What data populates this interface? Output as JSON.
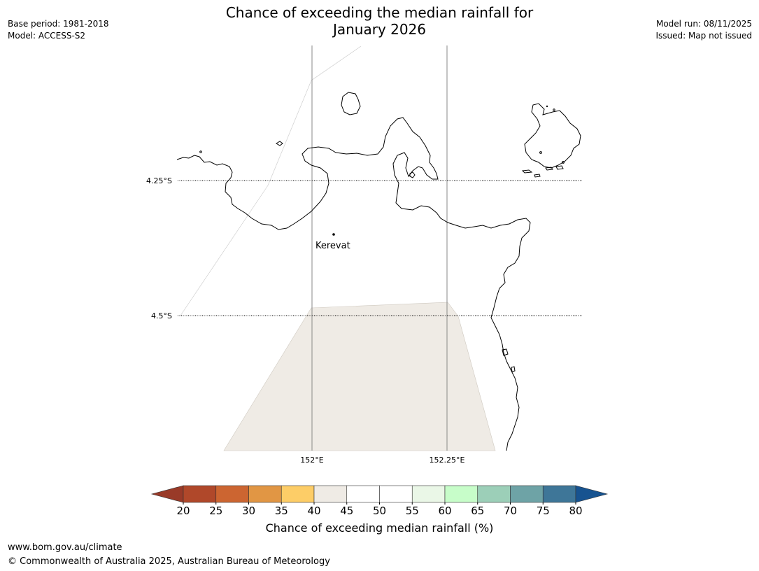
{
  "header": {
    "title_line1": "Chance of exceeding the median rainfall for",
    "title_line2": "January 2026",
    "base_period": "Base period: 1981-2018",
    "model": "Model: ACCESS-S2",
    "model_run": "Model run: 08/11/2025",
    "issued": "Issued: Map not issued"
  },
  "map": {
    "lat_labels": [
      "4.25°S",
      "4.5°S"
    ],
    "lon_labels": [
      "152°E",
      "152.25°E"
    ],
    "place": {
      "name": "Kerevat"
    },
    "colors": {
      "coast": "#000000",
      "grid": "#000000",
      "shaded_cell": "#efebe5"
    }
  },
  "colorbar": {
    "ticks": [
      "20",
      "25",
      "30",
      "35",
      "40",
      "45",
      "50",
      "55",
      "60",
      "65",
      "70",
      "75",
      "80"
    ],
    "colors": [
      "#b0482a",
      "#cc6531",
      "#e19644",
      "#fdcd67",
      "#efebe5",
      "#ffffff",
      "#ffffff",
      "#eaf7e7",
      "#c7fdc9",
      "#9ccfb8",
      "#6ea3a6",
      "#3e7698"
    ],
    "under_color": "#993a28",
    "over_color": "#175390",
    "label": "Chance of exceeding median rainfall (%)"
  },
  "footer": {
    "url": "www.bom.gov.au/climate",
    "copyright": "© Commonwealth of Australia 2025, Australian Bureau of Meteorology"
  }
}
